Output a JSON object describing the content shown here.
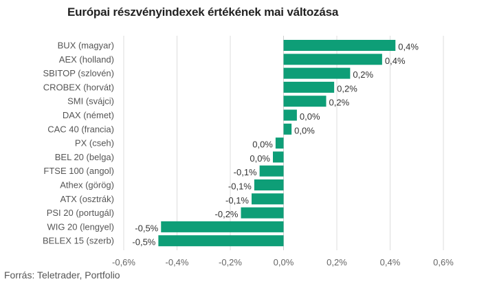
{
  "chart_data": {
    "type": "bar",
    "orientation": "horizontal",
    "title": "Európai részvényindexek értékének mai változása",
    "source": "Forrás: Teletrader, Portfolio",
    "bar_color": "#0e9e77",
    "grid": true,
    "xlim": [
      -0.6,
      0.6
    ],
    "xticks": [
      -0.6,
      -0.4,
      -0.2,
      0.0,
      0.2,
      0.4,
      0.6
    ],
    "xtick_labels": [
      "-0,6%",
      "-0,4%",
      "-0,2%",
      "0,0%",
      "0,2%",
      "0,4%",
      "0,6%"
    ],
    "categories": [
      "BUX (magyar)",
      "AEX (holland)",
      "SBITOP (szlovén)",
      "CROBEX (horvát)",
      "SMI (svájci)",
      "DAX (német)",
      "CAC 40 (francia)",
      "PX (cseh)",
      "BEL 20 (belga)",
      "FTSE 100 (angol)",
      "Athex (görög)",
      "ATX (osztrák)",
      "PSI 20 (portugál)",
      "WIG 20 (lengyel)",
      "BELEX 15 (szerb)"
    ],
    "values": [
      0.42,
      0.37,
      0.25,
      0.19,
      0.16,
      0.05,
      0.03,
      -0.03,
      -0.04,
      -0.09,
      -0.11,
      -0.12,
      -0.16,
      -0.46,
      -0.47
    ],
    "value_labels": [
      "0,4%",
      "0,4%",
      "0,2%",
      "0,2%",
      "0,2%",
      "0,0%",
      "0,0%",
      "0,0%",
      "0,0%",
      "-0,1%",
      "-0,1%",
      "-0,1%",
      "-0,2%",
      "-0,5%",
      "-0,5%"
    ]
  }
}
